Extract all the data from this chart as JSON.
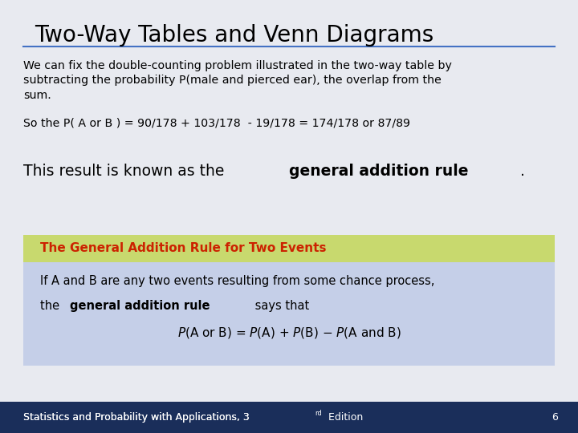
{
  "title": "Two-Way Tables and Venn Diagrams",
  "bg_color": "#e8eaf0",
  "title_color": "#000000",
  "title_fontsize": 20,
  "title_underline_color": "#4472c4",
  "body_text1": "We can fix the double-counting problem illustrated in the two-way table by\nsubtracting the probability P(male and pierced ear), the overlap from the\nsum.",
  "body_text2": "So the P( A or B ) = 90/178 + 103/178  - 19/178 = 174/178 or 87/89",
  "result_text_normal": "This result is known as the ",
  "result_text_bold": "general addition rule",
  "result_text_end": ".",
  "box_header_text": "The General Addition Rule for Two Events",
  "box_header_color": "#c8d96e",
  "box_header_text_color": "#cc2200",
  "box_body_color": "#c5cfe8",
  "box_body_text1_bold": "general addition rule",
  "box_body_text1_end": " says that",
  "box_formula": "$\\mathit{P}$(A or B) = $\\mathit{P}$(A) + $\\mathit{P}$(B) − $\\mathit{P}$(A and B)",
  "footer_text": "Statistics and Probability with Applications, 3",
  "footer_edition": "rd",
  "footer_text2": " Edition",
  "footer_page": "6",
  "footer_bg": "#1a2e5a",
  "footer_text_color": "#ffffff",
  "footer_fontsize": 9
}
